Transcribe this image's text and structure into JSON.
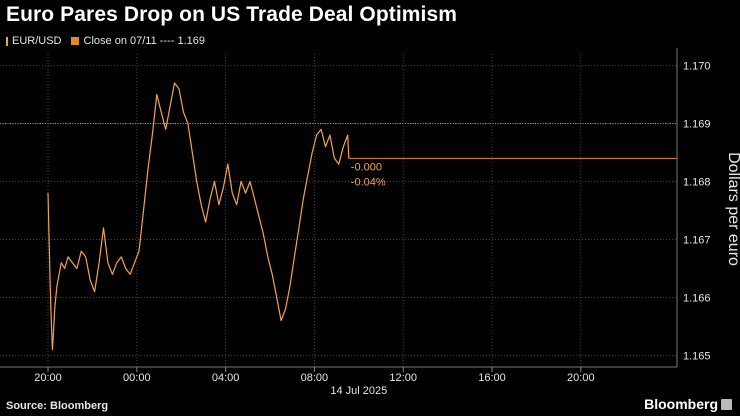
{
  "title": "Euro Pares Drop on US Trade Deal Optimism",
  "legend": {
    "series_label": "EUR/USD",
    "close_label": "Close on 07/11 ---- 1.169"
  },
  "source": "Source: Bloomberg",
  "brand": "Bloomberg",
  "colors": {
    "series": "#f5a34a",
    "close_line": "#e8862a",
    "grid": "#444444",
    "axis_text": "#e6e6e6"
  },
  "chart_data": {
    "type": "line",
    "title": "Euro Pares Drop on US Trade Deal Optimism",
    "ylabel": "Dollars per euro",
    "xlabel": "14 Jul 2025",
    "ylim": [
      1.1648,
      1.1702
    ],
    "y_ticks": [
      1.165,
      1.166,
      1.167,
      1.168,
      1.169,
      1.17
    ],
    "y_tick_labels": [
      "1.165",
      "1.166",
      "1.167",
      "1.168",
      "1.169",
      "1.170"
    ],
    "x_ticks": [
      "20:00",
      "00:00",
      "04:00",
      "08:00",
      "12:00",
      "16:00",
      "20:00"
    ],
    "x_date_label": "14 Jul 2025",
    "grid": true,
    "reference_line": {
      "label": "Close on 07/11",
      "value": 1.169
    },
    "last_value": 1.1684,
    "annotations": [
      "-0.000",
      "-0.04%"
    ],
    "series": [
      {
        "name": "EUR/USD",
        "hours": [
          0,
          0.1,
          0.15,
          0.2,
          0.25,
          0.3,
          0.4,
          0.5,
          0.6,
          0.75,
          0.9,
          1.1,
          1.3,
          1.5,
          1.7,
          1.9,
          2.1,
          2.3,
          2.5,
          2.7,
          2.9,
          3.1,
          3.3,
          3.5,
          3.7,
          3.9,
          4.1,
          4.3,
          4.5,
          4.7,
          4.9,
          5.1,
          5.3,
          5.5,
          5.7,
          5.9,
          6.1,
          6.3,
          6.5,
          6.7,
          6.9,
          7.1,
          7.3,
          7.5,
          7.7,
          7.9,
          8.1,
          8.3,
          8.5,
          8.7,
          8.9,
          9.1,
          9.3,
          9.5,
          9.7,
          9.9,
          10.1,
          10.3,
          10.5,
          10.7,
          10.9,
          11.1,
          11.3,
          11.5,
          11.7,
          11.9,
          12.1,
          12.3,
          12.5,
          12.7,
          12.9,
          13.1,
          13.3,
          13.5,
          13.55
        ],
        "values": [
          1.1678,
          1.1662,
          1.1656,
          1.1651,
          1.1654,
          1.1658,
          1.1662,
          1.1664,
          1.1666,
          1.1665,
          1.1667,
          1.1666,
          1.1665,
          1.1668,
          1.1667,
          1.1663,
          1.1661,
          1.1666,
          1.1672,
          1.1666,
          1.1664,
          1.1666,
          1.1667,
          1.1665,
          1.1664,
          1.1666,
          1.1668,
          1.1675,
          1.1682,
          1.1688,
          1.1695,
          1.1692,
          1.1689,
          1.1693,
          1.1697,
          1.1696,
          1.1692,
          1.169,
          1.1685,
          1.168,
          1.1676,
          1.1673,
          1.1677,
          1.168,
          1.1676,
          1.1679,
          1.1683,
          1.1678,
          1.1676,
          1.168,
          1.1678,
          1.168,
          1.1677,
          1.1674,
          1.1671,
          1.1667,
          1.1664,
          1.166,
          1.1656,
          1.1658,
          1.1662,
          1.1667,
          1.1672,
          1.1677,
          1.1681,
          1.1685,
          1.1688,
          1.1689,
          1.1686,
          1.1688,
          1.1684,
          1.1683,
          1.1686,
          1.1688,
          1.1684
        ]
      }
    ]
  }
}
